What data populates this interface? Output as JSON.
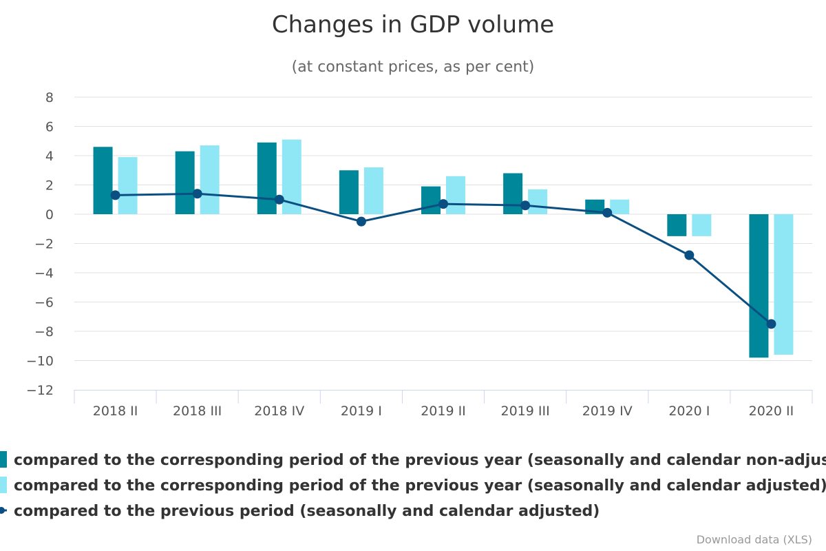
{
  "chart_data": {
    "type": "bar",
    "title": "Changes in GDP volume",
    "subtitle": "(at constant prices, as per cent)",
    "categories": [
      "2018 II",
      "2018 III",
      "2018 IV",
      "2019 I",
      "2019 II",
      "2019 III",
      "2019 IV",
      "2020 I",
      "2020 II"
    ],
    "ylim": [
      -12,
      8
    ],
    "yticks": [
      8,
      6,
      4,
      2,
      0,
      -2,
      -4,
      -6,
      -8,
      -10,
      -12
    ],
    "ytick_labels": [
      "8",
      "6",
      "4",
      "2",
      "0",
      "−2",
      "−4",
      "−6",
      "−8",
      "−10",
      "−12"
    ],
    "grid": true,
    "legend_position": "bottom",
    "series": [
      {
        "name": "compared to the corresponding period of the previous year (seasonally and calendar non-adjusted)",
        "type": "bar",
        "color": "#00889a",
        "values": [
          4.6,
          4.3,
          4.9,
          3.0,
          1.9,
          2.8,
          1.0,
          -1.5,
          -9.8
        ]
      },
      {
        "name": "compared to the corresponding period of the previous year (seasonally and calendar adjusted)",
        "type": "bar",
        "color": "#8fe6f5",
        "values": [
          3.9,
          4.7,
          5.1,
          3.2,
          2.6,
          1.7,
          1.0,
          -1.5,
          -9.6
        ]
      },
      {
        "name": "compared to the previous period (seasonally and calendar adjusted)",
        "type": "line",
        "color": "#0b4f82",
        "values": [
          1.3,
          1.4,
          1.0,
          -0.5,
          0.7,
          0.6,
          0.1,
          -2.8,
          -7.5
        ]
      }
    ]
  },
  "credit": {
    "label": "Download data (XLS)"
  }
}
